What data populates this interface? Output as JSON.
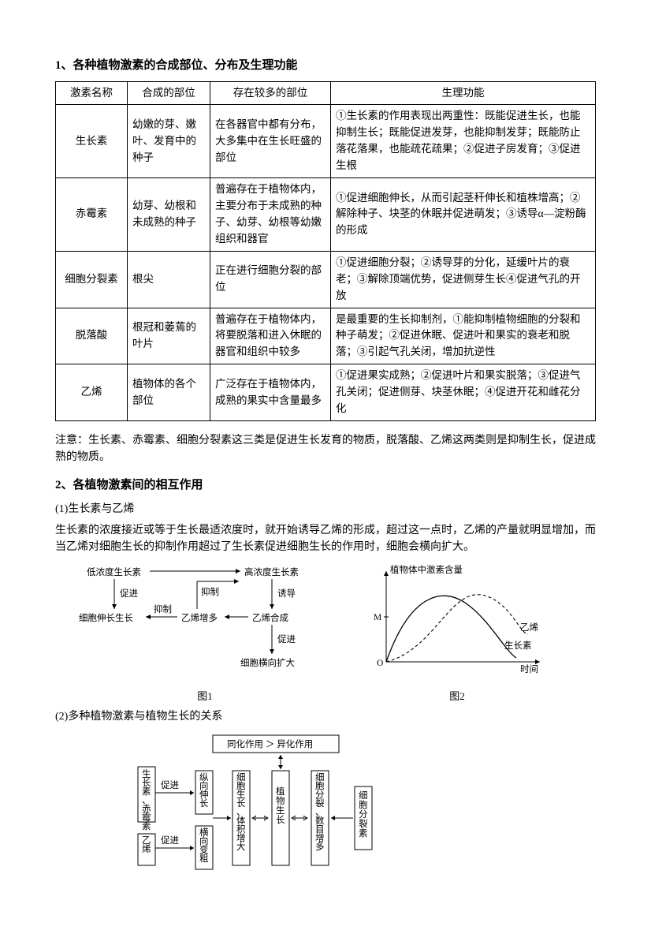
{
  "section1": {
    "title": "1、各种植物激素的合成部位、分布及生理功能",
    "columns": [
      "激素名称",
      "合成的部位",
      "存在较多的部位",
      "生理功能"
    ],
    "rows": [
      {
        "name": "生长素",
        "site": "幼嫩的芽、嫩叶、发育中的种子",
        "dist": "在各器官中都有分布，大多集中在生长旺盛的部位",
        "func": "①生长素的作用表现出两重性：既能促进生长，也能抑制生长；既能促进发芽，也能抑制发芽；既能防止落花落果，也能疏花疏果；②促进子房发育；③促进生根"
      },
      {
        "name": "赤霉素",
        "site": "幼芽、幼根和未成熟的种子",
        "dist": "普遍存在于植物体内，主要分布于未成熟的种子、幼芽、幼根等幼嫩组织和器官",
        "func": "①促进细胞伸长，从而引起茎秆伸长和植株增高；②解除种子、块茎的休眠并促进萌发；③诱导α—淀粉酶的形成"
      },
      {
        "name": "细胞分裂素",
        "site": "根尖",
        "dist": "正在进行细胞分裂的部位",
        "func": "①促进细胞分裂；②诱导芽的分化，延缓叶片的衰老；③解除顶端优势，促进侧芽生长④促进气孔的开放"
      },
      {
        "name": "脱落酸",
        "site": "根冠和萎蔫的叶片",
        "dist": "普遍存在于植物体内，将要脱落和进入休眠的器官和组织中较多",
        "func": "是最重要的生长抑制剂，①能抑制植物细胞的分裂和种子萌发；②促进休眠、促进叶和果实的衰老和脱落；③引起气孔关闭，增加抗逆性"
      },
      {
        "name": "乙烯",
        "site": "植物体的各个部位",
        "dist": "广泛存在于植物体内，成熟的果实中含量最多",
        "func": "①促进果实成熟；②促进叶片和果实脱落；③促进气孔关闭；促进侧芽、块茎休眠；④促进开花和雌花分化"
      }
    ],
    "note": "注意：生长素、赤霉素、细胞分裂素这三类是促进生长发育的物质，脱落酸、乙烯这两类则是抑制生长，促进成熟的物质。"
  },
  "section2": {
    "title": "2、各植物激素间的相互作用",
    "sub1_title": "(1)生长素与乙烯",
    "sub1_text": "生长素的浓度接近或等于生长最适浓度时，就开始诱导乙烯的形成，超过这一点时，乙烯的产量就明显增加，而当乙烯对细胞生长的抑制作用超过了生长素促进细胞生长的作用时，细胞会横向扩大。",
    "sub2_title": "(2)多种植物激素与植物生长的关系"
  },
  "fig1": {
    "label": "图1",
    "t_low": "低浓度生长素",
    "t_high": "高浓度生长素",
    "t_promote": "促进",
    "t_inhibit": "抑制",
    "t_induce": "诱导",
    "t_grow": "细胞伸长生长",
    "t_ethmore": "乙烯增多",
    "t_ethsyn": "乙烯合成",
    "t_lateral": "细胞横向扩大"
  },
  "fig2": {
    "label": "图2",
    "t_ylabel": "植物体中激素含量",
    "t_M": "M",
    "t_O": "O",
    "t_eth": "乙烯",
    "t_auxin": "生长素",
    "t_time": "时间"
  },
  "fig3": {
    "t_top": "同化作用 ＞ 异化作用",
    "t_left1": "生长素、赤霉素",
    "t_left1a": "促进",
    "t_left2": "乙烯",
    "t_left2a": "促进",
    "t_mid1": "纵向伸长",
    "t_mid2": "横向变粗",
    "t_center1": "细胞生长、体积增大",
    "t_center2": "植物生长",
    "t_right1": "细胞分裂、数目增多",
    "t_right2": "细胞分裂素"
  }
}
